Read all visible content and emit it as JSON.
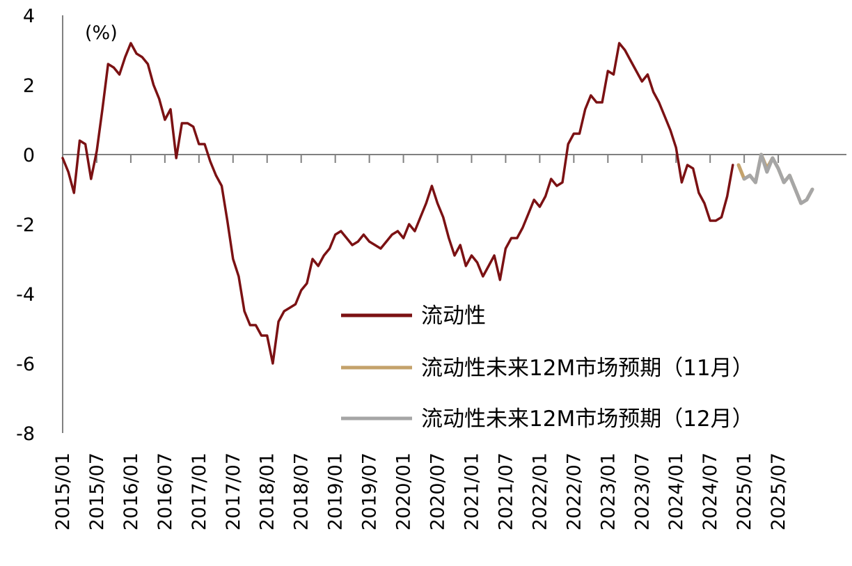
{
  "chart_data": {
    "type": "line",
    "unit_label": "(%)",
    "ylim": [
      -8,
      4
    ],
    "y_ticks": [
      4,
      2,
      0,
      -2,
      -4,
      -6,
      -8
    ],
    "x_ticks": [
      "2015/01",
      "2015/07",
      "2016/01",
      "2016/07",
      "2017/01",
      "2017/07",
      "2018/01",
      "2018/07",
      "2019/01",
      "2019/07",
      "2020/01",
      "2020/07",
      "2021/01",
      "2021/07",
      "2022/01",
      "2022/07",
      "2023/01",
      "2023/07",
      "2024/01",
      "2024/07",
      "2025/01",
      "2025/07"
    ],
    "grid": false,
    "legend_position": "center-right",
    "series": [
      {
        "name": "流动性",
        "color": "#7b1113",
        "start": "2015/01",
        "values": [
          -0.1,
          -0.5,
          -1.1,
          0.4,
          0.3,
          -0.7,
          0.1,
          1.3,
          2.6,
          2.5,
          2.3,
          2.8,
          3.2,
          2.9,
          2.8,
          2.6,
          2.0,
          1.6,
          1.0,
          1.3,
          -0.1,
          0.9,
          0.9,
          0.8,
          0.3,
          0.3,
          -0.2,
          -0.6,
          -0.9,
          -1.9,
          -3.0,
          -3.5,
          -4.5,
          -4.9,
          -4.9,
          -5.2,
          -5.2,
          -6.0,
          -4.8,
          -4.5,
          -4.4,
          -4.3,
          -3.9,
          -3.7,
          -3.0,
          -3.2,
          -2.9,
          -2.7,
          -2.3,
          -2.2,
          -2.4,
          -2.6,
          -2.5,
          -2.3,
          -2.5,
          -2.6,
          -2.7,
          -2.5,
          -2.3,
          -2.2,
          -2.4,
          -2.0,
          -2.2,
          -1.8,
          -1.4,
          -0.9,
          -1.4,
          -1.8,
          -2.4,
          -2.9,
          -2.6,
          -3.2,
          -2.9,
          -3.1,
          -3.5,
          -3.2,
          -2.9,
          -3.6,
          -2.7,
          -2.4,
          -2.4,
          -2.1,
          -1.7,
          -1.3,
          -1.5,
          -1.2,
          -0.7,
          -0.9,
          -0.8,
          0.3,
          0.6,
          0.6,
          1.3,
          1.7,
          1.5,
          1.5,
          2.4,
          2.3,
          3.2,
          3.0,
          2.7,
          2.4,
          2.1,
          2.3,
          1.8,
          1.5,
          1.1,
          0.7,
          0.2,
          -0.8,
          -0.3,
          -0.4,
          -1.1,
          -1.4,
          -1.9,
          -1.9,
          -1.8,
          -1.2,
          -0.3
        ]
      },
      {
        "name": "流动性未来12M市场预期（11月）",
        "color": "#c4a26b",
        "start": "2024/12",
        "values": [
          -0.3,
          -0.7,
          -0.6,
          -0.8,
          0.0,
          -0.4,
          -0.1,
          -0.4,
          -0.8,
          -0.6,
          -1.0,
          -1.4,
          -1.3,
          -1.0
        ]
      },
      {
        "name": "流动性未来12M市场预期（12月）",
        "color": "#a6a6a6",
        "start": "2025/01",
        "values": [
          -0.7,
          -0.6,
          -0.8,
          0.0,
          -0.5,
          -0.1,
          -0.4,
          -0.8,
          -0.6,
          -1.0,
          -1.4,
          -1.3,
          -1.0
        ]
      }
    ]
  }
}
